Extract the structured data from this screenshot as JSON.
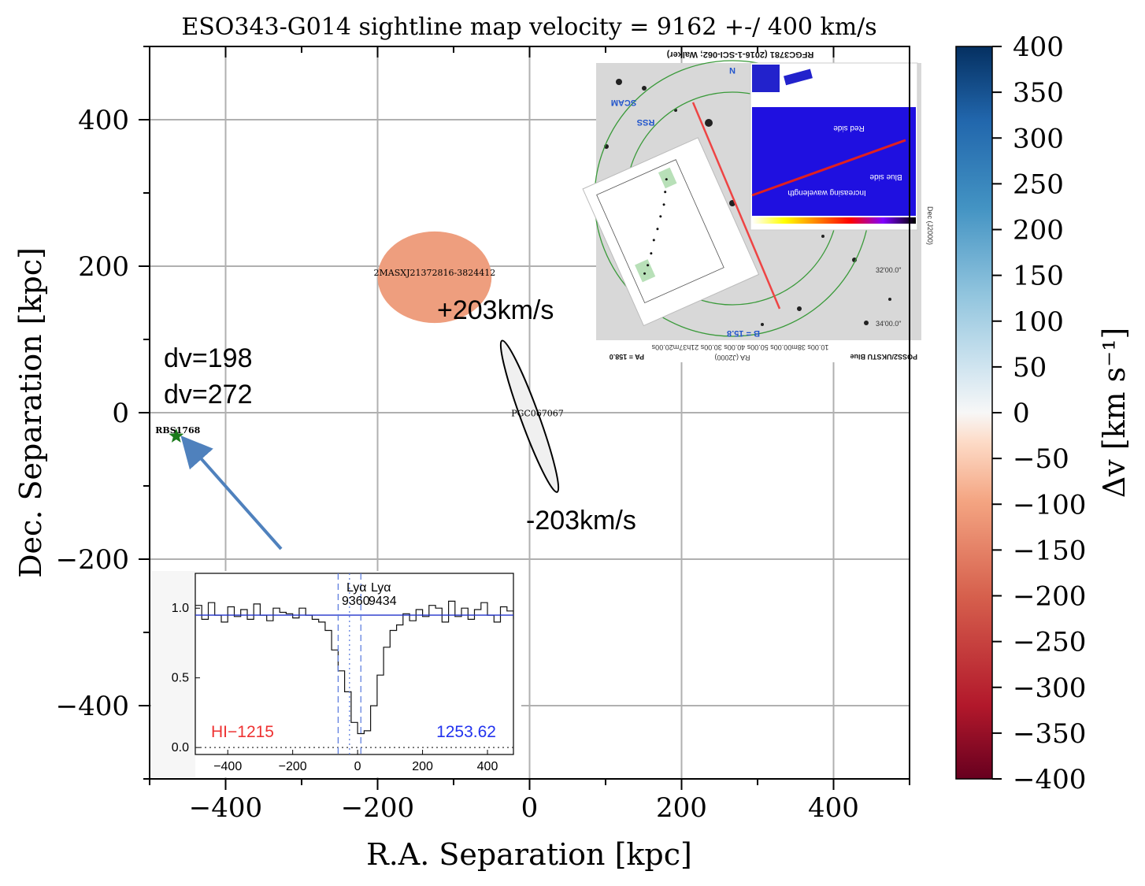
{
  "chart_data": {
    "type": "scatter",
    "title": "ESO343-G014 sightline map velocity = 9162 +-/ 400 km/s",
    "xlabel": "R.A. Separation [kpc]",
    "ylabel": "Dec. Separation [kpc]",
    "xlim": [
      -500,
      500
    ],
    "ylim": [
      -500,
      500
    ],
    "xticks": [
      -400,
      -200,
      0,
      200,
      400
    ],
    "yticks": [
      -400,
      -200,
      0,
      200,
      400
    ],
    "grid": true,
    "galaxies": [
      {
        "name": "2MASXJ21372816-3824412",
        "x": -125,
        "y": 185,
        "width": 150,
        "height": 125,
        "angle": 0,
        "dv": -135,
        "filled": true,
        "color": "#ee9e7e"
      },
      {
        "name": "PGC067067",
        "x": 0,
        "y": -5,
        "width": 24,
        "height": 220,
        "angle": -20,
        "dv": 0,
        "filled": false,
        "color": "#f0f0f0"
      }
    ],
    "sightlines": [
      {
        "name": "RBS1768",
        "x": -465,
        "y": -32,
        "marker": "star",
        "color": "#1b7a1b"
      }
    ],
    "annotations": {
      "plus_velocity": "+203km/s",
      "minus_velocity": "-203km/s",
      "dv_1": "dv=198",
      "dv_2": "dv=272"
    },
    "colorbar": {
      "label": "Δv [km s⁻¹]",
      "min": -400,
      "max": 400,
      "ticks": [
        -400,
        -350,
        -300,
        -250,
        -200,
        -150,
        -100,
        -50,
        0,
        50,
        100,
        150,
        200,
        250,
        300,
        350,
        400
      ],
      "colormap": "RdBu"
    },
    "spectrum_inset": {
      "xlim": [
        -500,
        480
      ],
      "ylim": [
        -0.05,
        1.25
      ],
      "xticks": [
        -400,
        -200,
        0,
        200,
        400
      ],
      "yticks": [
        0.0,
        0.5,
        1.0
      ],
      "continuum": 0.95,
      "left_label": "HI−1215",
      "right_label": "1253.62",
      "lya_label_1": "Lyα",
      "lya_label_2": "Lyα",
      "lya_value_1": "9360",
      "lya_value_2": "9434",
      "x": [
        -500,
        -480,
        -460,
        -440,
        -420,
        -400,
        -380,
        -360,
        -340,
        -320,
        -300,
        -280,
        -260,
        -240,
        -220,
        -200,
        -180,
        -160,
        -140,
        -120,
        -100,
        -80,
        -60,
        -40,
        -20,
        0,
        20,
        40,
        60,
        80,
        100,
        120,
        140,
        160,
        180,
        200,
        220,
        240,
        260,
        280,
        300,
        320,
        340,
        360,
        380,
        400,
        420,
        440,
        460,
        480
      ],
      "y": [
        1.02,
        0.92,
        1.04,
        0.95,
        0.9,
        1.01,
        0.94,
        0.99,
        0.92,
        1.03,
        0.95,
        0.91,
        1.0,
        0.97,
        0.96,
        0.93,
        1.0,
        0.95,
        0.92,
        0.9,
        0.84,
        0.7,
        0.55,
        0.4,
        0.18,
        0.1,
        0.12,
        0.3,
        0.52,
        0.72,
        0.84,
        0.88,
        0.96,
        0.91,
        0.99,
        0.94,
        1.02,
        1.0,
        0.9,
        1.05,
        0.94,
        1.0,
        0.92,
        0.99,
        1.04,
        0.95,
        0.9,
        1.01,
        0.98,
        0.92
      ]
    },
    "reference_image": {
      "header": "RFGC3781 (2016-1-SCI-062; Walker)",
      "label_scam": "SCAM",
      "label_rss": "RSS",
      "label_n": "N",
      "label_b": "B = 15.8",
      "label_pa": "PA = 158.0",
      "label_poss": "POSS2/UKSTU Blue",
      "label_ra": "RA (J2000)",
      "label_dec": "Dec (J2000)",
      "tick_3200": "32'00.0\"",
      "tick_3400": "34'00.0\"",
      "ra_ticks": "10.00s  38m00.00s  50.00s  40.00s  30.00s  21h37m20.00s",
      "red_side": "Red side",
      "blue_side": "Blue side",
      "increasing": "Increasing wavelength"
    }
  }
}
